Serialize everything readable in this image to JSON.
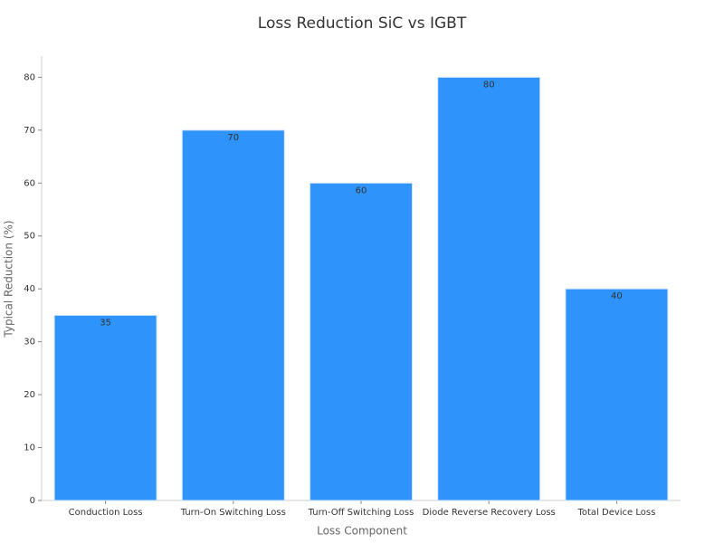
{
  "chart_data": {
    "type": "bar",
    "title": "Loss Reduction SiC vs IGBT",
    "x_label": "Loss Component",
    "y_label": "Typical Reduction (%)",
    "categories": [
      "Conduction Loss",
      "Turn-On Switching Loss",
      "Turn-Off Switching Loss",
      "Diode Reverse Recovery Loss",
      "Total Device Loss"
    ],
    "values": [
      35,
      70,
      60,
      80,
      40
    ],
    "color": "#2e93fa",
    "ylim": [
      0,
      84
    ],
    "yticks": [
      0,
      10,
      20,
      30,
      40,
      50,
      60,
      70,
      80
    ],
    "grid": false
  }
}
